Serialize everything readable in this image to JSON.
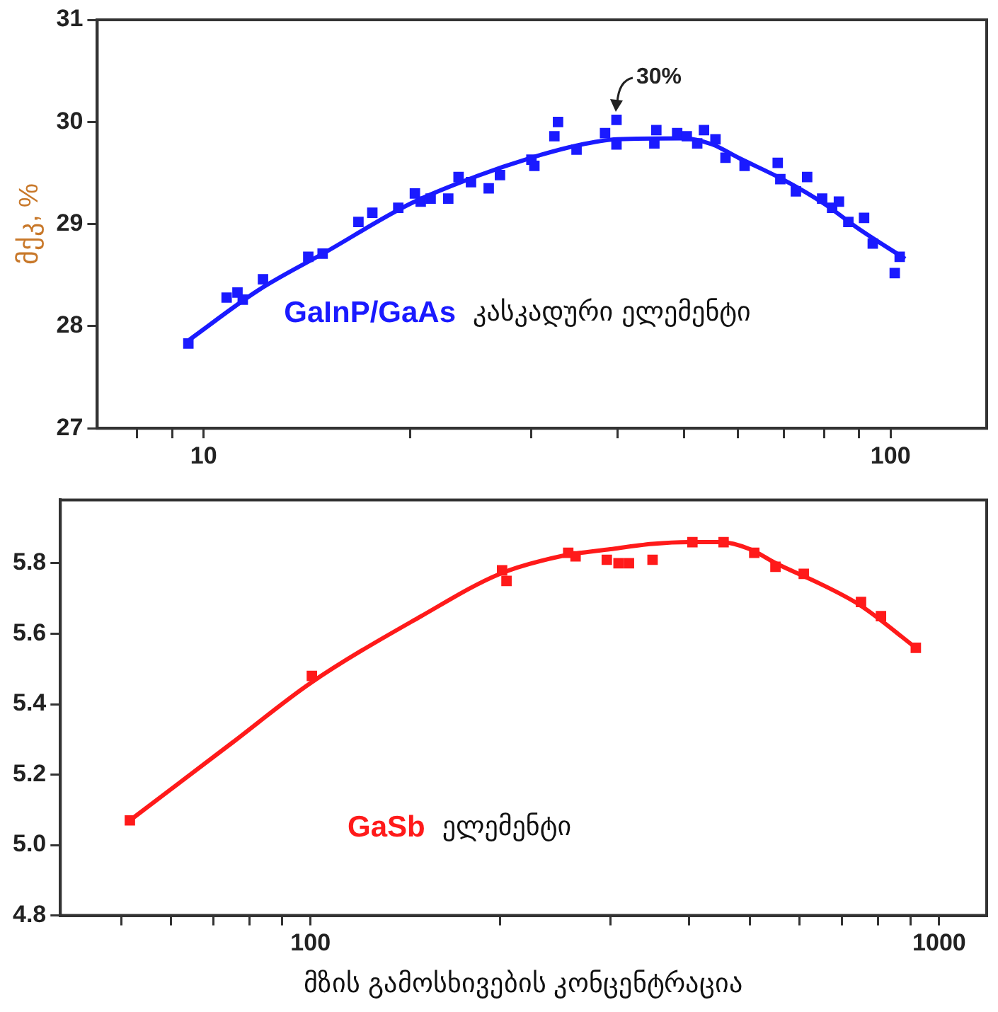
{
  "chart_data": [
    {
      "type": "scatter",
      "ylabel": "მქკ, %",
      "xlim": [
        7,
        138
      ],
      "ylim": [
        27,
        31
      ],
      "log": "x",
      "grid": false,
      "legend": false,
      "marker": "square",
      "xticks": [
        {
          "value": 8,
          "label": null
        },
        {
          "value": 9,
          "label": null
        },
        10,
        {
          "value": 20,
          "label": null
        },
        {
          "value": 30,
          "label": null
        },
        {
          "value": 40,
          "label": null
        },
        {
          "value": 50,
          "label": null
        },
        {
          "value": 60,
          "label": null
        },
        {
          "value": 70,
          "label": null
        },
        {
          "value": 80,
          "label": null
        },
        {
          "value": 90,
          "label": null
        },
        100
      ],
      "yticks": [
        27,
        28,
        29,
        30,
        31
      ],
      "annotations": [
        "კასკადური ელემენტი",
        {
          "text": "30%",
          "x": 39.9,
          "y": 30.02
        }
      ],
      "series": [
        {
          "name": "GaInP/GaAs",
          "color": "#1a1aff",
          "x": [
            9.5,
            10.8,
            11.2,
            11.4,
            12.2,
            14.2,
            14.9,
            16.8,
            17.6,
            19.2,
            20.3,
            20.7,
            21.4,
            22.7,
            23.5,
            24.5,
            26.0,
            27.0,
            30.0,
            30.3,
            32.4,
            32.8,
            34.9,
            38.4,
            39.9,
            39.9,
            45.3,
            45.6,
            48.9,
            50.5,
            52.3,
            53.5,
            55.6,
            57.5,
            61.3,
            68.5,
            69.1,
            72.8,
            75.6,
            79.5,
            82.2,
            84.1,
            86.8,
            91.5,
            94.2,
            101.4,
            103.1
          ],
          "values": [
            27.83,
            28.28,
            28.33,
            28.26,
            28.46,
            28.68,
            28.71,
            29.02,
            29.11,
            29.16,
            29.3,
            29.22,
            29.25,
            29.25,
            29.46,
            29.41,
            29.35,
            29.48,
            29.63,
            29.57,
            29.86,
            30.0,
            29.73,
            29.89,
            30.02,
            29.78,
            29.79,
            29.92,
            29.89,
            29.86,
            29.79,
            29.92,
            29.83,
            29.65,
            29.57,
            29.6,
            29.44,
            29.32,
            29.46,
            29.25,
            29.16,
            29.22,
            29.02,
            29.06,
            28.81,
            28.52,
            28.68
          ]
        },
        {
          "type": "line",
          "color": "#1a1aff",
          "marker": "none",
          "x": [
            9.5,
            12,
            15,
            20,
            25,
            30,
            35,
            40,
            50,
            55,
            60,
            70,
            80,
            90,
            105
          ],
          "values": [
            27.86,
            28.35,
            28.72,
            29.2,
            29.47,
            29.65,
            29.77,
            29.83,
            29.84,
            29.78,
            29.65,
            29.43,
            29.2,
            28.95,
            28.66
          ]
        }
      ]
    },
    {
      "type": "scatter",
      "xlabel": "მზის გამოსხივების კონცენტრაცია",
      "xlim": [
        40,
        1190
      ],
      "ylim": [
        4.8,
        5.98
      ],
      "log": "x",
      "grid": false,
      "legend": false,
      "marker": "square",
      "xticks": [
        {
          "value": 50,
          "label": null
        },
        {
          "value": 60,
          "label": null
        },
        {
          "value": 70,
          "label": null
        },
        {
          "value": 80,
          "label": null
        },
        {
          "value": 90,
          "label": null
        },
        100,
        {
          "value": 200,
          "label": null
        },
        {
          "value": 300,
          "label": null
        },
        {
          "value": 400,
          "label": null
        },
        {
          "value": 500,
          "label": null
        },
        {
          "value": 600,
          "label": null
        },
        {
          "value": 700,
          "label": null
        },
        {
          "value": 800,
          "label": null
        },
        {
          "value": 900,
          "label": null
        },
        1000
      ],
      "yticks": [
        4.8,
        {
          "value": 5,
          "label": "5.0"
        },
        5.2,
        5.4,
        5.6,
        5.8
      ],
      "annotations": [
        "ელემენტი"
      ],
      "series": [
        {
          "name": "GaSb",
          "color": "#ff1a1a",
          "x": [
            51.6,
            100.5,
            201.7,
            205,
            257,
            264,
            296,
            309,
            321,
            350,
            405,
            454,
            508,
            549,
            609,
            751,
            808,
            918
          ],
          "values": [
            5.07,
            5.48,
            5.78,
            5.75,
            5.83,
            5.82,
            5.81,
            5.8,
            5.8,
            5.81,
            5.86,
            5.86,
            5.83,
            5.79,
            5.77,
            5.69,
            5.65,
            5.56
          ]
        },
        {
          "type": "line",
          "color": "#ff1a1a",
          "marker": "none",
          "x": [
            51.6,
            75,
            100,
            150,
            200,
            250,
            300,
            350,
            400,
            450,
            500,
            550,
            650,
            750,
            918
          ],
          "values": [
            5.07,
            5.29,
            5.46,
            5.65,
            5.77,
            5.82,
            5.84,
            5.855,
            5.86,
            5.86,
            5.84,
            5.8,
            5.74,
            5.68,
            5.56
          ]
        }
      ]
    }
  ]
}
